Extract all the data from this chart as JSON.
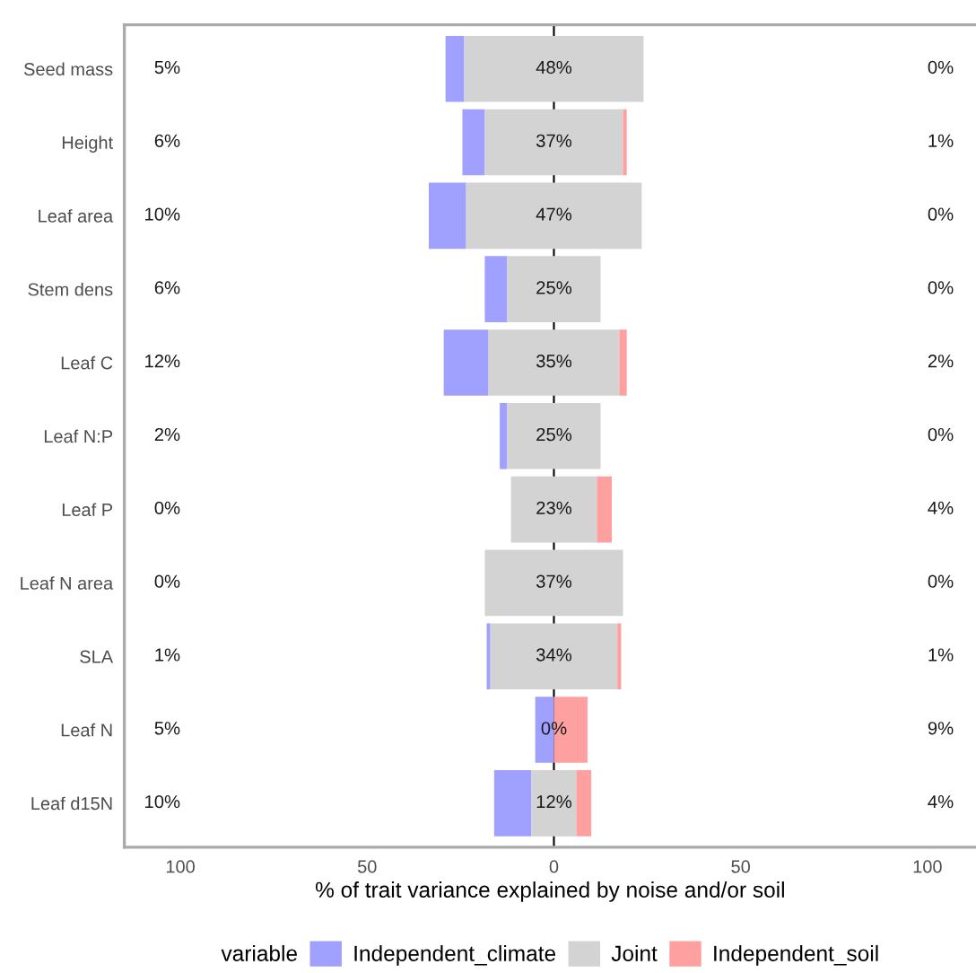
{
  "chart_data": {
    "type": "bar",
    "orientation": "horizontal",
    "xlabel": "% of trait variance explained by noise and/or soil",
    "legend_title": "variable",
    "legend": "bottom",
    "categories": [
      "Seed mass",
      "Height",
      "Leaf area",
      "Stem dens",
      "Leaf C",
      "Leaf N:P",
      "Leaf P",
      "Leaf N area",
      "SLA",
      "Leaf N",
      "Leaf d15N"
    ],
    "series": [
      {
        "name": "Independent_climate",
        "color": "#a0a0ff",
        "values": [
          5,
          6,
          10,
          6,
          12,
          2,
          0,
          0,
          1,
          5,
          10
        ],
        "base": [
          -29,
          -24.5,
          -33.5,
          -18.5,
          -29.5,
          -14.5,
          null,
          null,
          -18,
          -5,
          -16
        ],
        "value_labels": [
          "5%",
          "6%",
          "10%",
          "6%",
          "12%",
          "2%",
          "0%",
          "0%",
          "1%",
          "5%",
          "10%"
        ]
      },
      {
        "name": "Joint",
        "color": "#d3d3d3",
        "values": [
          48,
          37,
          47,
          25,
          35,
          25,
          23,
          37,
          34,
          0,
          12
        ],
        "base": [
          -24,
          -18.5,
          -23.5,
          -12.5,
          -17.5,
          -12.5,
          -11.5,
          -18.5,
          -17,
          null,
          -6
        ],
        "value_labels": [
          "48%",
          "37%",
          "47%",
          "25%",
          "35%",
          "25%",
          "23%",
          "37%",
          "34%",
          "0%",
          "12%"
        ]
      },
      {
        "name": "Independent_soil",
        "color": "#ffa0a0",
        "values": [
          0,
          1,
          0,
          0,
          2,
          0,
          4,
          0,
          1,
          9,
          4
        ],
        "base": [
          null,
          18.5,
          null,
          null,
          17.5,
          null,
          11.5,
          null,
          17,
          0,
          6
        ],
        "value_labels": [
          "0%",
          "1%",
          "0%",
          "0%",
          "2%",
          "0%",
          "4%",
          "0%",
          "1%",
          "9%",
          "4%"
        ]
      }
    ],
    "xlim": [
      -115,
      113
    ],
    "xticks": [
      {
        "value": -100,
        "label": "100"
      },
      {
        "value": -50,
        "label": "50"
      },
      0,
      50,
      100
    ],
    "ref_lines": [
      {
        "axis": "x",
        "value": 0,
        "color": "#000000"
      }
    ]
  }
}
